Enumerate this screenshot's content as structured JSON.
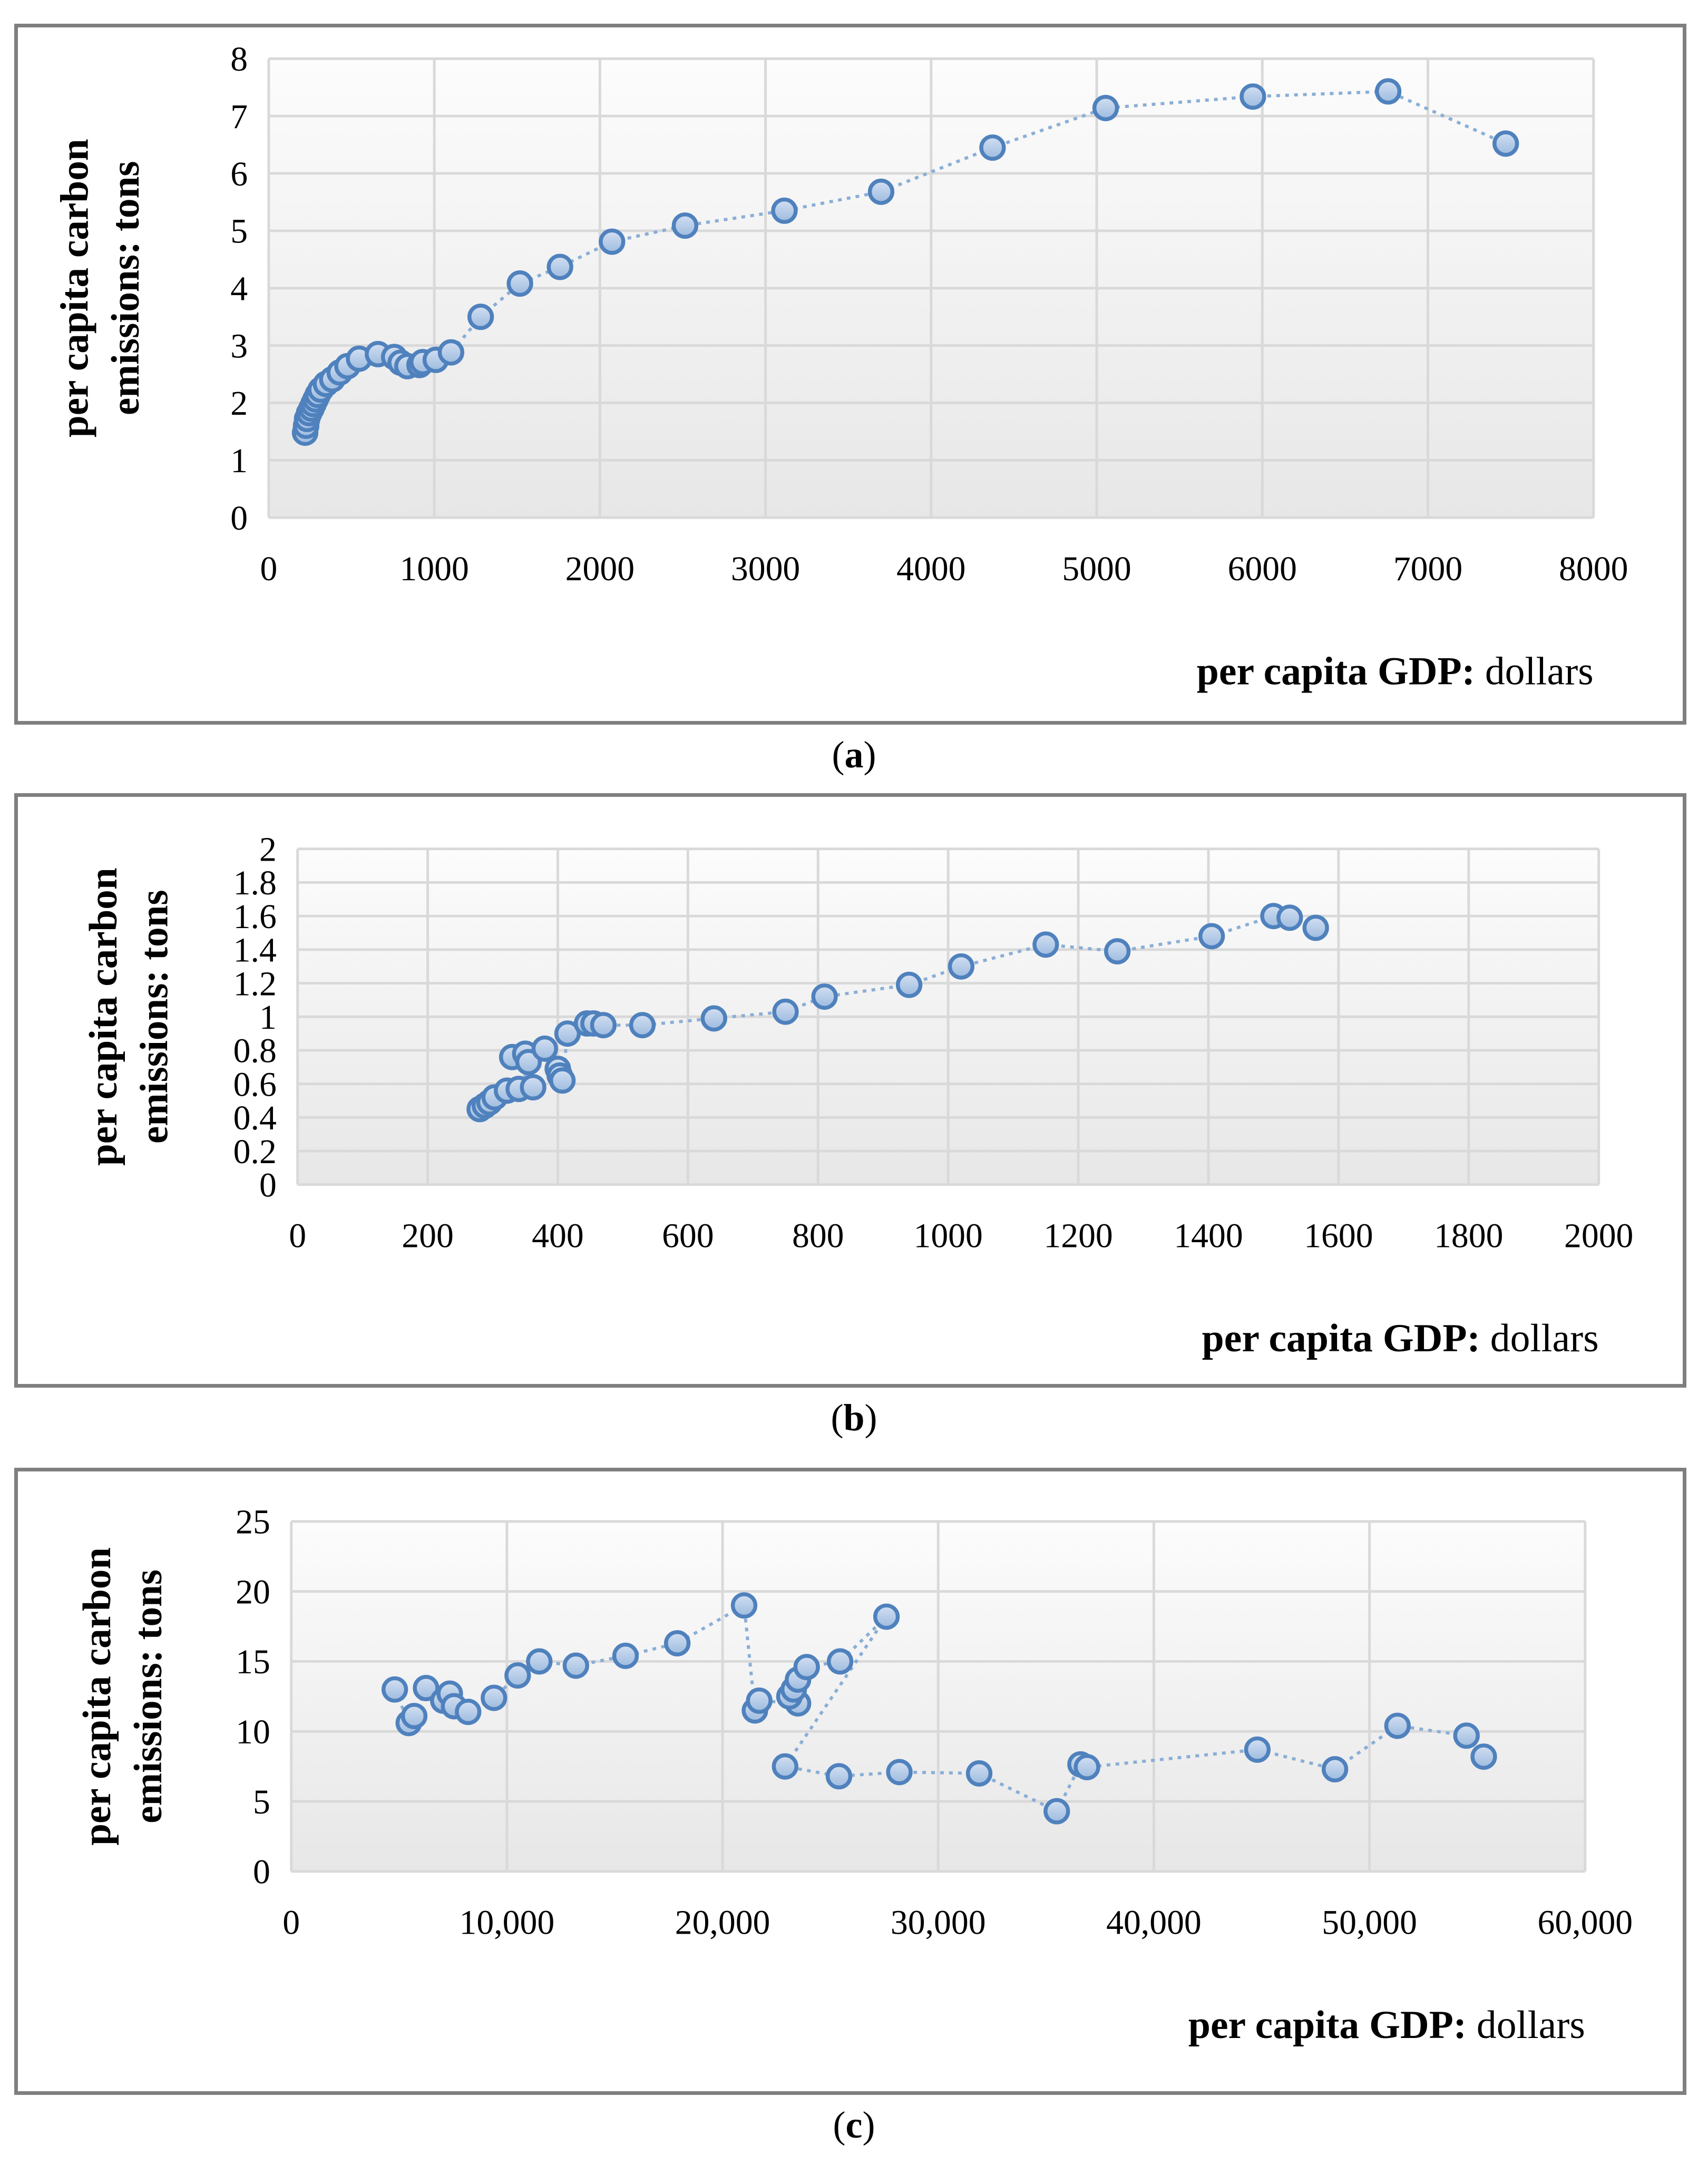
{
  "figure": {
    "background": "#ffffff",
    "panel_border_color": "#7f7f7f",
    "grid_color": "#d9d9d9",
    "plot_bg_top": "#fcfcfc",
    "plot_bg_bottom": "#e7e7e7",
    "marker_fill_top": "#d3e0f2",
    "marker_fill_bottom": "#9dbbdf",
    "marker_stroke": "#4f81bd",
    "line_color": "#8aaed6"
  },
  "chart_data": [
    {
      "type": "scatter",
      "caption_open": "(",
      "caption_letter": "a",
      "caption_close": ")",
      "ylabel_line1": "per capita carbon",
      "ylabel_line2": "emissions: tons",
      "xlabel_bold": "per capita GDP:",
      "xlabel_regular": " dollars",
      "xlim": [
        0,
        8000
      ],
      "ylim": [
        0,
        8
      ],
      "xtick_labels": [
        "0",
        "1000",
        "2000",
        "3000",
        "4000",
        "5000",
        "6000",
        "7000",
        "8000"
      ],
      "ytick_labels": [
        "0",
        "1",
        "2",
        "3",
        "4",
        "5",
        "6",
        "7",
        "8"
      ],
      "grid": true,
      "legend": "none",
      "points": [
        [
          220,
          1.48
        ],
        [
          226,
          1.6
        ],
        [
          232,
          1.72
        ],
        [
          244,
          1.82
        ],
        [
          258,
          1.9
        ],
        [
          270,
          1.98
        ],
        [
          283,
          2.06
        ],
        [
          296,
          2.14
        ],
        [
          314,
          2.23
        ],
        [
          346,
          2.33
        ],
        [
          384,
          2.41
        ],
        [
          429,
          2.53
        ],
        [
          476,
          2.64
        ],
        [
          546,
          2.77
        ],
        [
          660,
          2.85
        ],
        [
          758,
          2.8
        ],
        [
          797,
          2.7
        ],
        [
          838,
          2.64
        ],
        [
          911,
          2.66
        ],
        [
          930,
          2.71
        ],
        [
          1009,
          2.75
        ],
        [
          1101,
          2.88
        ],
        [
          1280,
          3.5
        ],
        [
          1517,
          4.08
        ],
        [
          1759,
          4.37
        ],
        [
          2073,
          4.81
        ],
        [
          2514,
          5.09
        ],
        [
          3114,
          5.35
        ],
        [
          3698,
          5.68
        ],
        [
          4371,
          6.45
        ],
        [
          5054,
          7.14
        ],
        [
          5943,
          7.34
        ],
        [
          6760,
          7.43
        ],
        [
          7470,
          6.52
        ]
      ]
    },
    {
      "type": "scatter",
      "caption_open": "(",
      "caption_letter": "b",
      "caption_close": ")",
      "ylabel_line1": "per capita carbon",
      "ylabel_line2": "emissions: tons",
      "xlabel_bold": "per capita GDP:",
      "xlabel_regular": " dollars",
      "xlim": [
        0,
        2000
      ],
      "ylim": [
        0,
        2
      ],
      "xtick_labels": [
        "0",
        "200",
        "400",
        "600",
        "800",
        "1000",
        "1200",
        "1400",
        "1600",
        "1800",
        "2000"
      ],
      "ytick_labels": [
        "0",
        "0.2",
        "0.4",
        "0.6",
        "0.8",
        "1",
        "1.2",
        "1.4",
        "1.6",
        "1.8",
        "2"
      ],
      "grid": true,
      "legend": "none",
      "points": [
        [
          280,
          0.45
        ],
        [
          288,
          0.47
        ],
        [
          295,
          0.49
        ],
        [
          303,
          0.52
        ],
        [
          322,
          0.56
        ],
        [
          340,
          0.57
        ],
        [
          362,
          0.58
        ],
        [
          330,
          0.76
        ],
        [
          350,
          0.78
        ],
        [
          355,
          0.73
        ],
        [
          380,
          0.81
        ],
        [
          400,
          0.69
        ],
        [
          403,
          0.65
        ],
        [
          407,
          0.62
        ],
        [
          415,
          0.9
        ],
        [
          445,
          0.96
        ],
        [
          455,
          0.96
        ],
        [
          470,
          0.95
        ],
        [
          530,
          0.95
        ],
        [
          640,
          0.99
        ],
        [
          750,
          1.03
        ],
        [
          810,
          1.12
        ],
        [
          940,
          1.19
        ],
        [
          1020,
          1.3
        ],
        [
          1150,
          1.43
        ],
        [
          1260,
          1.39
        ],
        [
          1405,
          1.48
        ],
        [
          1500,
          1.6
        ],
        [
          1525,
          1.59
        ],
        [
          1565,
          1.53
        ]
      ]
    },
    {
      "type": "scatter",
      "caption_open": "(",
      "caption_letter": "c",
      "caption_close": ")",
      "ylabel_line1": "per capita carbon",
      "ylabel_line2": "emissions: tons",
      "xlabel_bold": "per capita GDP:",
      "xlabel_regular": " dollars",
      "xlim": [
        0,
        60000
      ],
      "ylim": [
        0,
        25
      ],
      "xtick_labels": [
        "0",
        "10,000",
        "20,000",
        "30,000",
        "40,000",
        "50,000",
        "60,000"
      ],
      "ytick_labels": [
        "0",
        "5",
        "10",
        "15",
        "20",
        "25"
      ],
      "grid": true,
      "legend": "none",
      "points": [
        [
          4800,
          13.0
        ],
        [
          5450,
          10.6
        ],
        [
          5700,
          11.1
        ],
        [
          6250,
          13.1
        ],
        [
          7050,
          12.2
        ],
        [
          7350,
          12.7
        ],
        [
          7550,
          11.8
        ],
        [
          8200,
          11.4
        ],
        [
          9400,
          12.4
        ],
        [
          10500,
          14.0
        ],
        [
          11500,
          15.0
        ],
        [
          13200,
          14.7
        ],
        [
          15500,
          15.4
        ],
        [
          17900,
          16.3
        ],
        [
          21000,
          19.0
        ],
        [
          21500,
          11.5
        ],
        [
          21700,
          12.2
        ],
        [
          23500,
          12.0
        ],
        [
          23100,
          12.5
        ],
        [
          23300,
          13.0
        ],
        [
          23500,
          13.7
        ],
        [
          23900,
          14.6
        ],
        [
          25450,
          15.0
        ],
        [
          27600,
          18.2
        ],
        [
          22900,
          7.5
        ],
        [
          25400,
          6.8
        ],
        [
          28200,
          7.1
        ],
        [
          31900,
          7.0
        ],
        [
          35500,
          4.3
        ],
        [
          36600,
          7.65
        ],
        [
          36900,
          7.45
        ],
        [
          44800,
          8.7
        ],
        [
          48400,
          7.3
        ],
        [
          51300,
          10.4
        ],
        [
          54500,
          9.7
        ],
        [
          55300,
          8.2
        ]
      ]
    }
  ]
}
